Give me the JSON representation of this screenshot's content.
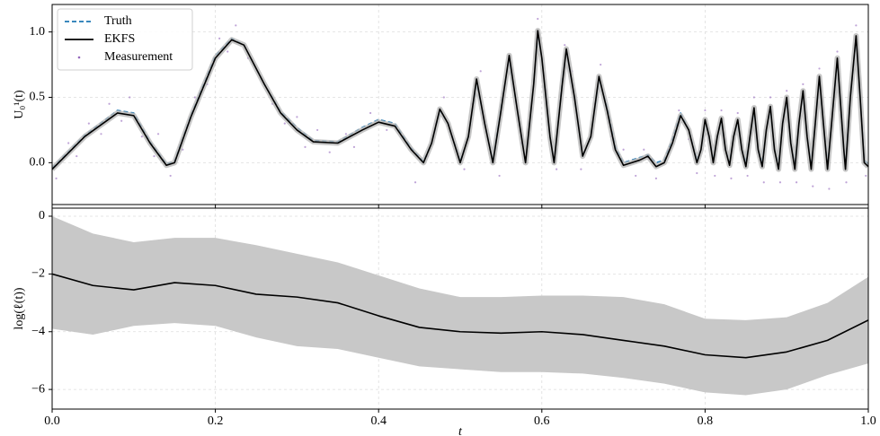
{
  "chart_data": [
    {
      "type": "line",
      "ylabel": "U₀¹(t)",
      "legend": "upper left",
      "grid": true,
      "xticklabels": false,
      "xlim": [
        0,
        1
      ],
      "ylim": [
        -0.32,
        1.21
      ],
      "xticks": [
        {
          "value": 0,
          "label": "0.0"
        },
        0.2,
        0.4,
        0.6,
        0.8,
        {
          "value": 1,
          "label": "1.0"
        }
      ],
      "yticks": [
        {
          "value": 0,
          "label": "0.0"
        },
        0.5,
        {
          "value": 1,
          "label": "1.0"
        }
      ],
      "x": [
        0,
        0.04,
        0.08,
        0.1,
        0.12,
        0.14,
        0.15,
        0.17,
        0.2,
        0.22,
        0.235,
        0.26,
        0.28,
        0.3,
        0.32,
        0.35,
        0.38,
        0.4,
        0.42,
        0.44,
        0.455,
        0.465,
        0.475,
        0.485,
        0.5,
        0.51,
        0.52,
        0.53,
        0.54,
        0.55,
        0.56,
        0.57,
        0.58,
        0.59,
        0.595,
        0.6,
        0.61,
        0.615,
        0.625,
        0.63,
        0.64,
        0.65,
        0.66,
        0.67,
        0.68,
        0.69,
        0.7,
        0.71,
        0.72,
        0.73,
        0.74,
        0.75,
        0.76,
        0.77,
        0.78,
        0.79,
        0.795,
        0.8,
        0.805,
        0.81,
        0.815,
        0.82,
        0.825,
        0.83,
        0.835,
        0.84,
        0.845,
        0.85,
        0.855,
        0.86,
        0.865,
        0.87,
        0.875,
        0.88,
        0.885,
        0.89,
        0.895,
        0.9,
        0.905,
        0.91,
        0.915,
        0.92,
        0.925,
        0.93,
        0.935,
        0.94,
        0.945,
        0.95,
        0.955,
        0.962,
        0.97,
        0.972,
        0.978,
        0.985,
        0.99,
        0.995,
        1
      ],
      "series": [
        {
          "name": "Truth",
          "style": "dashed",
          "color": "#1f77b4",
          "values": [
            -0.04,
            0.21,
            0.4,
            0.38,
            0.16,
            -0.01,
            0.01,
            0.36,
            0.82,
            0.95,
            0.9,
            0.6,
            0.39,
            0.27,
            0.17,
            0.16,
            0.27,
            0.33,
            0.3,
            0.11,
            0.01,
            0.15,
            0.4,
            0.3,
            0.01,
            0.2,
            0.62,
            0.3,
            0.01,
            0.42,
            0.8,
            0.4,
            0.0,
            0.6,
            0.98,
            0.8,
            0.2,
            0.0,
            0.62,
            0.86,
            0.5,
            0.05,
            0.2,
            0.64,
            0.42,
            0.12,
            0.0,
            0.02,
            0.04,
            0.06,
            0.0,
            0.02,
            0.18,
            0.38,
            0.25,
            0.02,
            0.1,
            0.31,
            0.2,
            0.02,
            0.2,
            0.32,
            0.1,
            0.0,
            0.2,
            0.31,
            0.1,
            0.0,
            0.2,
            0.4,
            0.1,
            0.0,
            0.25,
            0.41,
            0.1,
            -0.02,
            0.3,
            0.48,
            0.15,
            -0.02,
            0.3,
            0.53,
            0.2,
            -0.02,
            0.3,
            0.64,
            0.3,
            -0.02,
            0.3,
            0.78,
            0.1,
            -0.02,
            0.5,
            0.95,
            0.5,
            0.02,
            -0.01
          ]
        },
        {
          "name": "EKFS",
          "style": "solid",
          "color": "#000000",
          "values": [
            -0.05,
            0.2,
            0.38,
            0.36,
            0.15,
            -0.02,
            0.0,
            0.35,
            0.8,
            0.94,
            0.9,
            0.6,
            0.38,
            0.25,
            0.16,
            0.15,
            0.25,
            0.31,
            0.28,
            0.1,
            0.0,
            0.15,
            0.41,
            0.3,
            0.0,
            0.2,
            0.64,
            0.3,
            0.0,
            0.4,
            0.82,
            0.4,
            0.0,
            0.6,
            1.01,
            0.8,
            0.2,
            0.0,
            0.6,
            0.87,
            0.5,
            0.05,
            0.2,
            0.66,
            0.4,
            0.1,
            -0.02,
            0.0,
            0.02,
            0.05,
            -0.03,
            0.0,
            0.15,
            0.36,
            0.25,
            0.0,
            0.1,
            0.33,
            0.2,
            0.0,
            0.2,
            0.34,
            0.1,
            -0.02,
            0.2,
            0.33,
            0.1,
            -0.03,
            0.2,
            0.42,
            0.1,
            -0.03,
            0.25,
            0.43,
            0.1,
            -0.05,
            0.3,
            0.5,
            0.15,
            -0.05,
            0.3,
            0.55,
            0.2,
            -0.05,
            0.3,
            0.66,
            0.3,
            -0.05,
            0.3,
            0.8,
            0.1,
            -0.05,
            0.5,
            0.97,
            0.5,
            0.0,
            -0.03
          ]
        },
        {
          "name": "Measurement",
          "style": "points",
          "color": "#9467bd",
          "x": [
            0.005,
            0.02,
            0.03,
            0.045,
            0.06,
            0.07,
            0.085,
            0.095,
            0.11,
            0.125,
            0.13,
            0.145,
            0.16,
            0.175,
            0.19,
            0.205,
            0.215,
            0.225,
            0.24,
            0.25,
            0.27,
            0.285,
            0.3,
            0.31,
            0.325,
            0.34,
            0.36,
            0.37,
            0.39,
            0.41,
            0.43,
            0.445,
            0.46,
            0.47,
            0.48,
            0.495,
            0.505,
            0.515,
            0.525,
            0.535,
            0.548,
            0.558,
            0.565,
            0.575,
            0.585,
            0.595,
            0.605,
            0.618,
            0.628,
            0.637,
            0.648,
            0.665,
            0.672,
            0.685,
            0.7,
            0.715,
            0.725,
            0.74,
            0.755,
            0.768,
            0.78,
            0.79,
            0.8,
            0.812,
            0.82,
            0.832,
            0.84,
            0.852,
            0.86,
            0.872,
            0.88,
            0.892,
            0.9,
            0.912,
            0.92,
            0.932,
            0.94,
            0.952,
            0.962,
            0.973,
            0.985,
            0.997
          ],
          "values": [
            -0.12,
            0.15,
            0.05,
            0.3,
            0.22,
            0.45,
            0.32,
            0.5,
            0.2,
            0.05,
            0.22,
            -0.1,
            0.1,
            0.5,
            0.6,
            0.95,
            0.85,
            1.05,
            0.8,
            0.72,
            0.45,
            0.3,
            0.35,
            0.12,
            0.25,
            0.08,
            0.22,
            0.12,
            0.38,
            0.25,
            0.2,
            -0.15,
            0.05,
            0.3,
            0.5,
            0.1,
            -0.05,
            0.45,
            0.7,
            0.15,
            -0.1,
            0.75,
            0.6,
            0.15,
            0.3,
            1.1,
            0.55,
            -0.05,
            0.9,
            0.7,
            -0.05,
            0.45,
            0.75,
            0.2,
            0.1,
            -0.1,
            0.1,
            -0.12,
            0.1,
            0.4,
            0.18,
            -0.08,
            0.4,
            -0.1,
            0.4,
            -0.12,
            0.38,
            -0.1,
            0.5,
            -0.15,
            0.5,
            -0.15,
            0.55,
            -0.15,
            0.6,
            -0.18,
            0.72,
            -0.2,
            0.85,
            -0.15,
            1.05,
            -0.1
          ]
        }
      ]
    },
    {
      "type": "line",
      "xlabel": "t",
      "ylabel": "log(ℓ(t))",
      "grid": true,
      "xlim": [
        0,
        1
      ],
      "ylim": [
        -6.68,
        0.28
      ],
      "xticks": [
        {
          "value": 0,
          "label": "0.0"
        },
        0.2,
        0.4,
        0.6,
        0.8,
        {
          "value": 1,
          "label": "1.0"
        }
      ],
      "yticks": [
        {
          "value": -6,
          "label": "−6"
        },
        {
          "value": -4,
          "label": "−4"
        },
        {
          "value": -2,
          "label": "−2"
        },
        0
      ],
      "x": [
        0,
        0.05,
        0.1,
        0.15,
        0.2,
        0.25,
        0.3,
        0.35,
        0.4,
        0.45,
        0.5,
        0.55,
        0.6,
        0.65,
        0.7,
        0.75,
        0.8,
        0.85,
        0.9,
        0.95,
        1
      ],
      "band": {
        "color": "#c8c8c8",
        "upper": [
          0.0,
          -0.6,
          -0.9,
          -0.75,
          -0.75,
          -1.0,
          -1.3,
          -1.6,
          -2.05,
          -2.5,
          -2.8,
          -2.8,
          -2.75,
          -2.75,
          -2.8,
          -3.05,
          -3.55,
          -3.6,
          -3.5,
          -3.0,
          -2.1
        ],
        "lower": [
          -3.9,
          -4.1,
          -3.8,
          -3.7,
          -3.8,
          -4.2,
          -4.5,
          -4.6,
          -4.9,
          -5.2,
          -5.3,
          -5.4,
          -5.4,
          -5.45,
          -5.6,
          -5.8,
          -6.1,
          -6.2,
          -6.0,
          -5.5,
          -5.1
        ]
      },
      "series": [
        {
          "style": "solid",
          "color": "#000000",
          "values": [
            -2.0,
            -2.4,
            -2.55,
            -2.3,
            -2.4,
            -2.7,
            -2.8,
            -3.0,
            -3.45,
            -3.85,
            -4.0,
            -4.05,
            -4.0,
            -4.1,
            -4.3,
            -4.5,
            -4.8,
            -4.9,
            -4.7,
            -4.3,
            -3.6
          ]
        }
      ]
    }
  ]
}
